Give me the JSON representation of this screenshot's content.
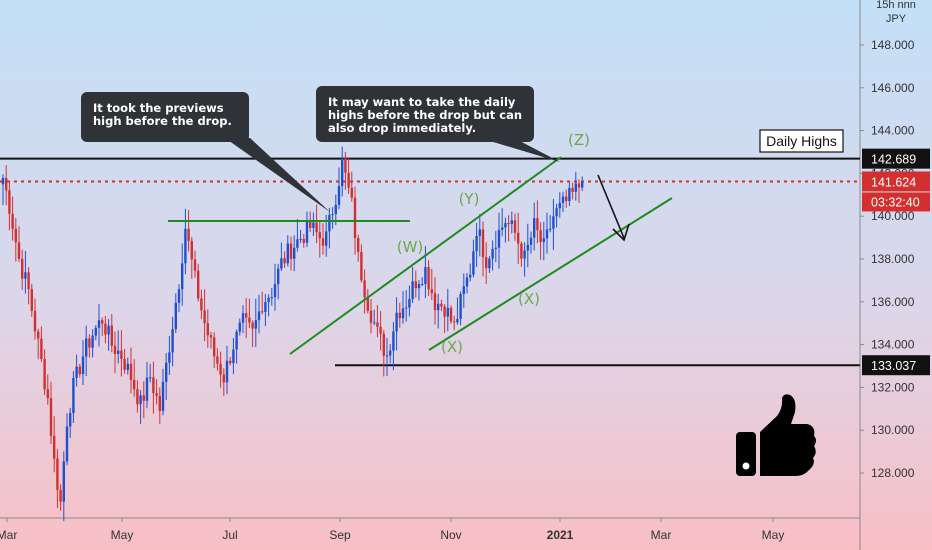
{
  "chart_data": {
    "type": "candlestick",
    "symbol_header": [
      "15h nnn",
      "JPY"
    ],
    "y_range": [
      126.5,
      150.0
    ],
    "y_ticks": [
      128,
      130,
      132,
      134,
      136,
      138,
      140,
      142,
      144,
      146,
      148
    ],
    "y_tick_labels": [
      "128.000",
      "130.000",
      "132.000",
      "134.000",
      "136.000",
      "138.000",
      "140.000",
      "142.000",
      "144.000",
      "146.000",
      "148.000"
    ],
    "x_ticks": [
      {
        "label": "Mar",
        "bold": false
      },
      {
        "label": "May",
        "bold": false
      },
      {
        "label": "Jul",
        "bold": false
      },
      {
        "label": "Sep",
        "bold": false
      },
      {
        "label": "Nov",
        "bold": false
      },
      {
        "label": "2021",
        "bold": true
      },
      {
        "label": "Mar",
        "bold": false
      },
      {
        "label": "May",
        "bold": false
      }
    ],
    "series_anchors": [
      [
        0,
        141.8
      ],
      [
        2,
        140.5
      ],
      [
        5,
        138.0
      ],
      [
        8,
        136.5
      ],
      [
        11,
        134.0
      ],
      [
        14,
        131.5
      ],
      [
        16,
        128.5
      ],
      [
        18,
        126.6
      ],
      [
        20,
        130.5
      ],
      [
        22,
        132.0
      ],
      [
        25,
        133.5
      ],
      [
        28,
        134.5
      ],
      [
        31,
        135.2
      ],
      [
        34,
        134.0
      ],
      [
        37,
        133.5
      ],
      [
        40,
        132.5
      ],
      [
        43,
        131.2
      ],
      [
        46,
        132.5
      ],
      [
        49,
        131.0
      ],
      [
        52,
        134.0
      ],
      [
        55,
        137.0
      ],
      [
        57,
        139.5
      ],
      [
        60,
        137.0
      ],
      [
        63,
        135.0
      ],
      [
        66,
        133.5
      ],
      [
        69,
        132.5
      ],
      [
        72,
        134.0
      ],
      [
        75,
        135.0
      ],
      [
        78,
        134.5
      ],
      [
        81,
        136.0
      ],
      [
        84,
        136.5
      ],
      [
        87,
        137.8
      ],
      [
        90,
        138.5
      ],
      [
        93,
        139.0
      ],
      [
        96,
        139.5
      ],
      [
        99,
        139.0
      ],
      [
        101,
        139.0
      ],
      [
        104,
        141.0
      ],
      [
        106,
        142.5
      ],
      [
        109,
        140.5
      ],
      [
        111,
        138.0
      ],
      [
        114,
        136.0
      ],
      [
        117,
        134.5
      ],
      [
        120,
        133.5
      ],
      [
        123,
        135.5
      ],
      [
        126,
        136.0
      ],
      [
        129,
        137.0
      ],
      [
        132,
        137.5
      ],
      [
        135,
        136.0
      ],
      [
        138,
        135.8
      ],
      [
        141,
        134.8
      ],
      [
        144,
        136.5
      ],
      [
        146,
        137.5
      ],
      [
        148,
        139.5
      ],
      [
        151,
        138.0
      ],
      [
        154,
        139.0
      ],
      [
        157,
        139.8
      ],
      [
        160,
        139.2
      ],
      [
        163,
        138.0
      ],
      [
        166,
        139.5
      ],
      [
        169,
        138.5
      ],
      [
        172,
        140.0
      ],
      [
        175,
        140.5
      ],
      [
        178,
        141.0
      ],
      [
        181,
        141.6
      ]
    ],
    "horizontal_levels": [
      {
        "value": 142.689,
        "label": "142.689",
        "style": "solid",
        "label_style": "dark"
      },
      {
        "value": 141.624,
        "label": "141.624",
        "style": "dotted",
        "label_style": "red"
      },
      {
        "value": 133.037,
        "label": "133.037",
        "style": "solid",
        "label_style": "dark"
      }
    ],
    "countdown": "03:32:40",
    "level_caption": "Daily Highs",
    "annotations": [
      {
        "text": "It took the previews high before the drop.",
        "lines": [
          "It took the previews",
          "high before the drop."
        ]
      },
      {
        "text": "It may want to take the daily highs before the drop but can also drop immediately.",
        "lines": [
          "It may want to take the daily",
          "highs before the drop but can",
          "also drop immediately."
        ]
      }
    ],
    "wave_labels": [
      "(W)",
      "(X)",
      "(Y)",
      "(X)",
      "(Z)"
    ],
    "colors": {
      "bull": "#1f4fd1",
      "bear": "#d32f2f",
      "background_top": "#c3e0f7",
      "background_bottom": "#f9bfc5",
      "channel": "#1f8a1f",
      "wave_label": "#6aaa4a",
      "callout_bg": "#2f3237",
      "callout_text": "#ffffff",
      "level_line": "#111111",
      "dotted_level": "#d32f2f"
    },
    "icon": "thumbs-up-icon"
  }
}
